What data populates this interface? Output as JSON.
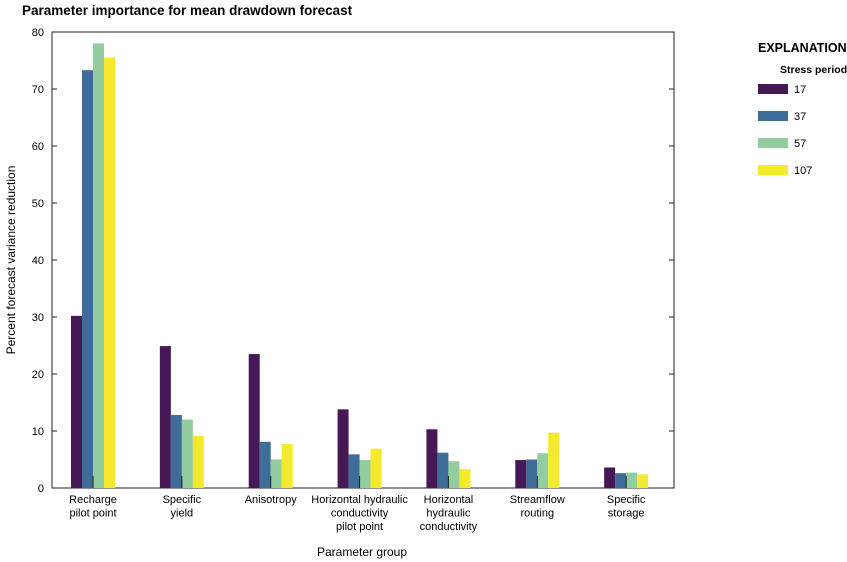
{
  "chart_data": {
    "type": "bar",
    "title": "Parameter importance for mean drawdown forecast",
    "xlabel": "Parameter group",
    "ylabel": "Percent forecast variance reduction",
    "ylim": [
      0,
      80
    ],
    "yticks": [
      0,
      10,
      20,
      30,
      40,
      50,
      60,
      70,
      80
    ],
    "grid": false,
    "categories": [
      [
        "Recharge",
        "pilot point"
      ],
      [
        "Specific",
        "yield"
      ],
      [
        "Anisotropy"
      ],
      [
        "Horizontal hydraulic",
        "conductivity",
        "pilot point"
      ],
      [
        "Horizontal",
        "hydraulic",
        "conductivity"
      ],
      [
        "Streamflow",
        "routing"
      ],
      [
        "Specific",
        "storage"
      ]
    ],
    "series": [
      {
        "name": "17",
        "color": "#461856",
        "values": [
          30.2,
          24.9,
          23.5,
          13.8,
          10.3,
          4.9,
          3.6
        ]
      },
      {
        "name": "37",
        "color": "#3f6d99",
        "values": [
          73.3,
          12.8,
          8.1,
          5.9,
          6.2,
          5.0,
          2.6
        ]
      },
      {
        "name": "57",
        "color": "#93cc9f",
        "values": [
          78.0,
          12.0,
          5.0,
          4.9,
          4.7,
          6.1,
          2.7
        ]
      },
      {
        "name": "107",
        "color": "#f5e92d",
        "values": [
          75.5,
          9.1,
          7.7,
          6.9,
          3.3,
          9.7,
          2.4
        ]
      }
    ],
    "legend": {
      "heading": "EXPLANATION",
      "subheading": "Stress period",
      "placement": "right"
    }
  }
}
